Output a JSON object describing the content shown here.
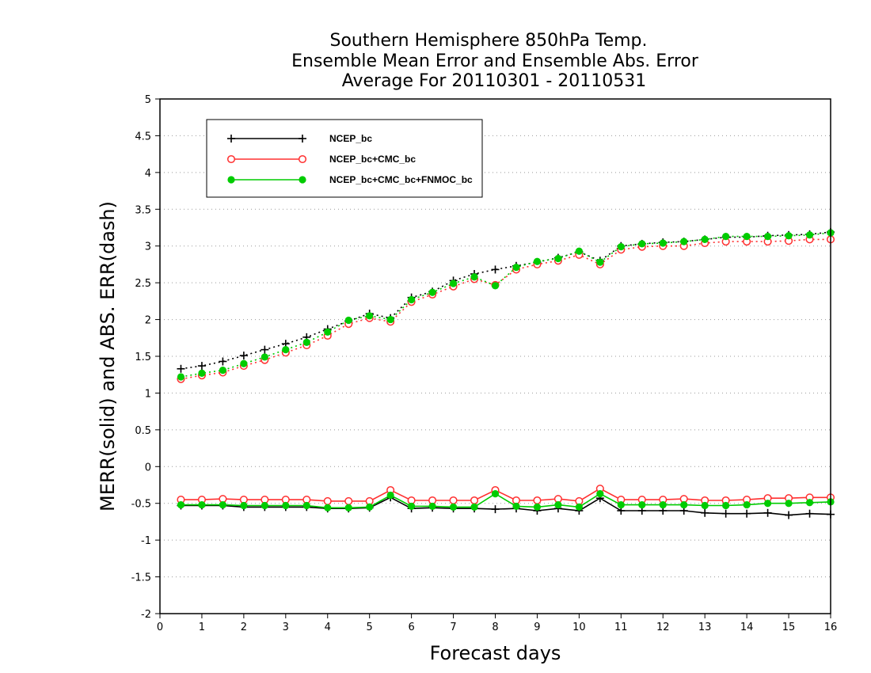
{
  "chart_data": {
    "type": "line",
    "title": [
      "Southern Hemisphere 850hPa Temp.",
      "Ensemble Mean Error and Ensemble Abs. Error",
      "Average For 20110301 - 20110531"
    ],
    "xlabel": "Forecast days",
    "ylabel": "MERR(solid) and ABS. ERR(dash)",
    "xlim": [
      0,
      16
    ],
    "ylim": [
      -2,
      5
    ],
    "xticks": [
      "0",
      "1",
      "2",
      "3",
      "4",
      "5",
      "6",
      "7",
      "8",
      "9",
      "10",
      "11",
      "12",
      "13",
      "14",
      "15",
      "16"
    ],
    "yticks": [
      "-2",
      "-1.5",
      "-1",
      "-0.5",
      "0",
      "0.5",
      "1",
      "1.5",
      "2",
      "2.5",
      "3",
      "3.5",
      "4",
      "4.5",
      "5"
    ],
    "grid": "horizontal dotted",
    "legend_position": "top-left",
    "x": [
      0.5,
      1,
      1.5,
      2,
      2.5,
      3,
      3.5,
      4,
      4.5,
      5,
      5.5,
      6,
      6.5,
      7,
      7.5,
      8,
      8.5,
      9,
      9.5,
      10,
      10.5,
      11,
      11.5,
      12,
      12.5,
      13,
      13.5,
      14,
      14.5,
      15,
      15.5,
      16
    ],
    "series": [
      {
        "name": "NCEP_bc",
        "color": "#000000",
        "marker": "plus",
        "merr": [
          -0.53,
          -0.53,
          -0.53,
          -0.55,
          -0.55,
          -0.55,
          -0.55,
          -0.57,
          -0.57,
          -0.56,
          -0.42,
          -0.57,
          -0.56,
          -0.57,
          -0.57,
          -0.58,
          -0.57,
          -0.6,
          -0.57,
          -0.6,
          -0.43,
          -0.6,
          -0.6,
          -0.6,
          -0.6,
          -0.63,
          -0.64,
          -0.64,
          -0.63,
          -0.66,
          -0.64,
          -0.65
        ],
        "abs_err": [
          1.33,
          1.37,
          1.43,
          1.51,
          1.59,
          1.67,
          1.76,
          1.87,
          1.98,
          2.08,
          2.02,
          2.3,
          2.38,
          2.53,
          2.62,
          2.68,
          2.73,
          2.78,
          2.84,
          2.92,
          2.8,
          3.0,
          3.03,
          3.05,
          3.06,
          3.09,
          3.12,
          3.12,
          3.14,
          3.15,
          3.16,
          3.19
        ]
      },
      {
        "name": "NCEP_bc+CMC_bc",
        "color": "#ff3030",
        "marker": "open-circle",
        "merr": [
          -0.45,
          -0.45,
          -0.44,
          -0.45,
          -0.45,
          -0.45,
          -0.45,
          -0.47,
          -0.47,
          -0.47,
          -0.32,
          -0.46,
          -0.46,
          -0.46,
          -0.46,
          -0.32,
          -0.46,
          -0.46,
          -0.44,
          -0.47,
          -0.3,
          -0.45,
          -0.45,
          -0.45,
          -0.44,
          -0.46,
          -0.46,
          -0.45,
          -0.43,
          -0.43,
          -0.42,
          -0.42
        ],
        "abs_err": [
          1.19,
          1.24,
          1.28,
          1.37,
          1.45,
          1.55,
          1.65,
          1.78,
          1.94,
          2.02,
          1.97,
          2.24,
          2.34,
          2.45,
          2.55,
          2.47,
          2.68,
          2.75,
          2.8,
          2.88,
          2.75,
          2.95,
          2.99,
          3.0,
          3.0,
          3.04,
          3.06,
          3.06,
          3.06,
          3.07,
          3.09,
          3.09
        ]
      },
      {
        "name": "NCEP_bc+CMC_bc+FNMOC_bc",
        "color": "#00cc00",
        "marker": "filled-circle",
        "merr": [
          -0.52,
          -0.52,
          -0.52,
          -0.53,
          -0.53,
          -0.53,
          -0.53,
          -0.56,
          -0.56,
          -0.55,
          -0.39,
          -0.54,
          -0.54,
          -0.55,
          -0.55,
          -0.37,
          -0.54,
          -0.55,
          -0.52,
          -0.55,
          -0.37,
          -0.52,
          -0.52,
          -0.52,
          -0.52,
          -0.53,
          -0.53,
          -0.52,
          -0.5,
          -0.5,
          -0.49,
          -0.48
        ],
        "abs_err": [
          1.22,
          1.27,
          1.31,
          1.4,
          1.49,
          1.59,
          1.69,
          1.83,
          1.99,
          2.05,
          2.0,
          2.27,
          2.37,
          2.49,
          2.58,
          2.46,
          2.71,
          2.79,
          2.83,
          2.93,
          2.78,
          2.99,
          3.03,
          3.04,
          3.06,
          3.09,
          3.13,
          3.13,
          3.13,
          3.14,
          3.15,
          3.18
        ]
      }
    ]
  }
}
